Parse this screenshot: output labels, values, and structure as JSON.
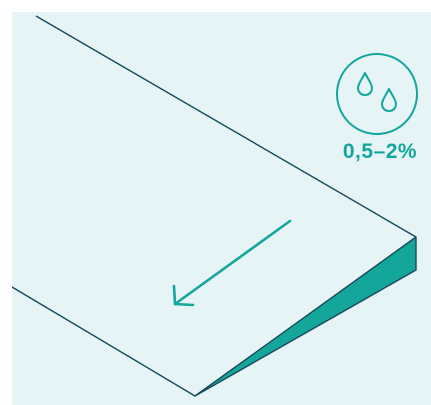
{
  "colors": {
    "background": "#e6f4f6",
    "line": "#17495a",
    "accent": "#14a69b"
  },
  "badge": {
    "icon": "water-drops-icon",
    "slope_text": "0,5–2%"
  },
  "arrow": {
    "icon": "down-slope-arrow-icon"
  }
}
